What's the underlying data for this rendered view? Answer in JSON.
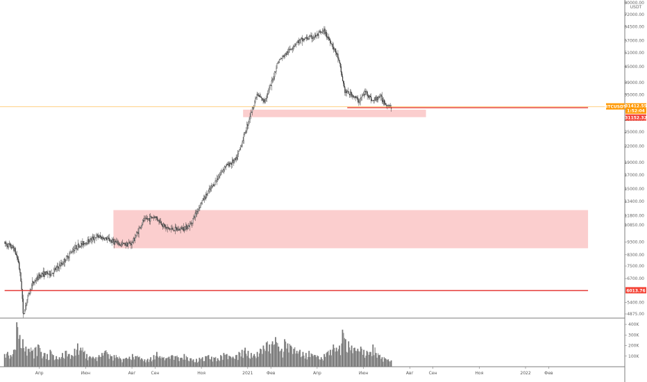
{
  "chart_data": {
    "type": "candlestick",
    "symbol_tag": "BTCUSDT",
    "currency_label": "USDT",
    "last_price": "31412.55",
    "countdown": "1:52:04",
    "price_tags": [
      {
        "label": "31152.32",
        "value": 31152.32,
        "color": "#f44336"
      },
      {
        "label": "6013.76",
        "value": 6013.76,
        "color": "#f44336"
      }
    ],
    "y_axis": {
      "scale": "log",
      "range": [
        4600,
        80000
      ],
      "ticks": [
        "80000.00",
        "72000.00",
        "64500.00",
        "57000.00",
        "51000.00",
        "45000.00",
        "39000.00",
        "35000.00",
        "31000.00",
        "28000.00",
        "25000.00",
        "22000.00",
        "19000.00",
        "17000.00",
        "15000.00",
        "13400.00",
        "11800.00",
        "10850.00",
        "9300.00",
        "8300.00",
        "7500.00",
        "6700.00",
        "5400.00",
        "4875.00"
      ]
    },
    "volume_axis": {
      "ticks": [
        "400K",
        "300K",
        "200K",
        "100K"
      ],
      "max": 420000
    },
    "x_axis": {
      "labels": [
        {
          "text": "Апр",
          "t": 0.5
        },
        {
          "text": "Июн",
          "t": 2.5
        },
        {
          "text": "Авг",
          "t": 4.5
        },
        {
          "text": "Сен",
          "t": 5.5
        },
        {
          "text": "Ноя",
          "t": 7.5
        },
        {
          "text": "2021",
          "t": 9.5
        },
        {
          "text": "Фев",
          "t": 10.5
        },
        {
          "text": "Апр",
          "t": 12.5
        },
        {
          "text": "Июн",
          "t": 14.5
        },
        {
          "text": "Авг",
          "t": 16.5
        },
        {
          "text": "Сен",
          "t": 17.5
        },
        {
          "text": "Ноя",
          "t": 19.5
        },
        {
          "text": "2022",
          "t": 21.5
        },
        {
          "text": "Фев",
          "t": 22.5
        }
      ],
      "range": [
        -1.0,
        24.2
      ]
    },
    "zones": [
      {
        "t_start": 3.7,
        "t_end": 24.2,
        "price_low": 8800,
        "price_high": 12400,
        "color": "#f8a5a5"
      },
      {
        "t_start": 9.3,
        "t_end": 17.2,
        "price_low": 28600,
        "price_high": 30600,
        "color": "#f8a5a5"
      }
    ],
    "lines": [
      {
        "price": 6013.76,
        "t_start": -1.0,
        "t_end": 24.2,
        "color": "#e53935"
      },
      {
        "price": 31152.32,
        "t_start": 13.8,
        "t_end": 24.2,
        "color": "#e53935"
      }
    ],
    "current_price_line": {
      "price": 31412.55,
      "color": "#ffc870"
    },
    "price_path": [
      [
        -1.0,
        9200
      ],
      [
        -0.6,
        8800
      ],
      [
        -0.4,
        7800
      ],
      [
        -0.25,
        6000
      ],
      [
        -0.2,
        4800
      ],
      [
        -0.05,
        5500
      ],
      [
        0.2,
        6400
      ],
      [
        0.6,
        7000
      ],
      [
        1.0,
        7000
      ],
      [
        1.5,
        7700
      ],
      [
        2.0,
        8800
      ],
      [
        2.5,
        9300
      ],
      [
        3.0,
        9800
      ],
      [
        3.5,
        9500
      ],
      [
        4.0,
        9100
      ],
      [
        4.5,
        9200
      ],
      [
        5.0,
        11300
      ],
      [
        5.5,
        11700
      ],
      [
        6.0,
        10500
      ],
      [
        6.5,
        10400
      ],
      [
        7.0,
        10800
      ],
      [
        7.5,
        13300
      ],
      [
        8.0,
        15500
      ],
      [
        8.5,
        18300
      ],
      [
        9.0,
        19500
      ],
      [
        9.3,
        23500
      ],
      [
        9.6,
        29000
      ],
      [
        9.9,
        35000
      ],
      [
        10.2,
        33000
      ],
      [
        10.5,
        38000
      ],
      [
        10.8,
        47000
      ],
      [
        11.2,
        51000
      ],
      [
        11.6,
        56000
      ],
      [
        12.0,
        58000
      ],
      [
        12.4,
        59000
      ],
      [
        12.8,
        62000
      ],
      [
        13.1,
        56000
      ],
      [
        13.4,
        49000
      ],
      [
        13.7,
        36000
      ],
      [
        14.0,
        35000
      ],
      [
        14.3,
        33000
      ],
      [
        14.6,
        36000
      ],
      [
        14.9,
        33000
      ],
      [
        15.2,
        34500
      ],
      [
        15.5,
        32000
      ],
      [
        15.7,
        31400
      ]
    ],
    "volume": {
      "t_start": -1.0,
      "t_end": 15.7,
      "values": [
        120000,
        140000,
        110000,
        160000,
        420000,
        300000,
        260000,
        190000,
        170000,
        150000,
        180000,
        210000,
        140000,
        130000,
        120000,
        160000,
        110000,
        100000,
        90000,
        130000,
        150000,
        120000,
        110000,
        170000,
        220000,
        180000,
        140000,
        120000,
        100000,
        95000,
        90000,
        110000,
        130000,
        150000,
        120000,
        100000,
        110000,
        90000,
        80000,
        75000,
        85000,
        95000,
        120000,
        100000,
        90000,
        80000,
        70000,
        75000,
        90000,
        110000,
        140000,
        100000,
        85000,
        80000,
        95000,
        110000,
        100000,
        90000,
        85000,
        120000,
        90000,
        80000,
        70000,
        75000,
        85000,
        90000,
        100000,
        110000,
        95000,
        85000,
        80000,
        110000,
        130000,
        120000,
        100000,
        95000,
        110000,
        140000,
        160000,
        180000,
        150000,
        130000,
        120000,
        140000,
        170000,
        200000,
        230000,
        210000,
        240000,
        280000,
        190000,
        170000,
        260000,
        220000,
        200000,
        170000,
        150000,
        160000,
        140000,
        130000,
        150000,
        120000,
        110000,
        100000,
        90000,
        120000,
        140000,
        160000,
        210000,
        180000,
        200000,
        350000,
        260000,
        240000,
        200000,
        180000,
        170000,
        190000,
        160000,
        150000,
        140000,
        210000,
        130000,
        110000,
        90000,
        80000,
        70000,
        60000
      ]
    }
  }
}
